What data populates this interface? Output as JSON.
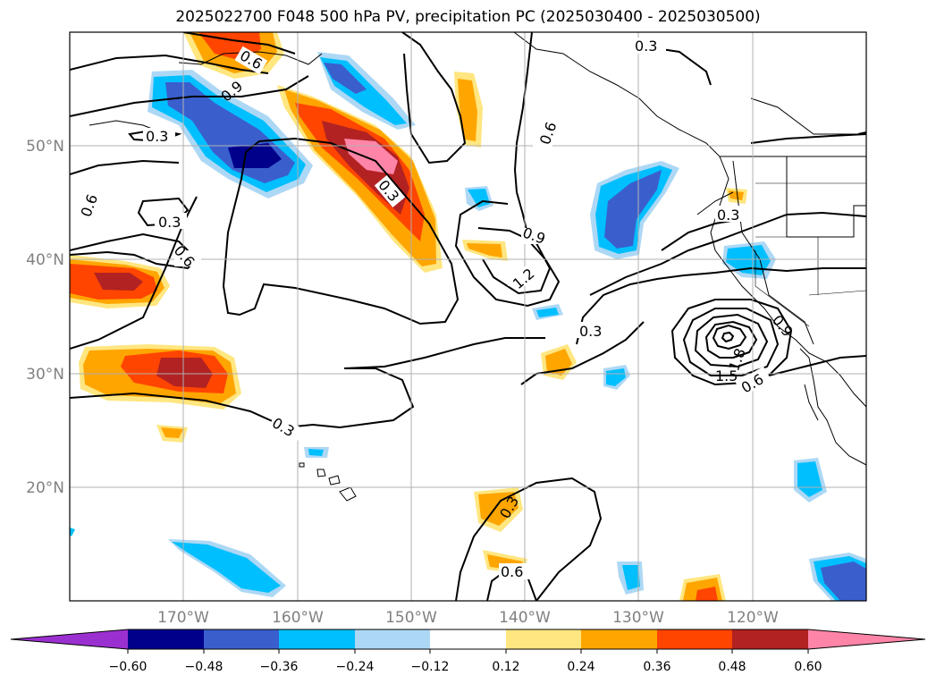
{
  "title": "2025022700 F048 500 hPa PV, precipitation PC (2025030400 - 2025030500)",
  "lat_labels": [
    "50°N",
    "40°N",
    "30°N",
    "20°N"
  ],
  "lon_labels": [
    "170°W",
    "160°W",
    "150°W",
    "140°W",
    "130°W",
    "120°W"
  ],
  "contour_labels": [
    "0.3",
    "0.6",
    "0.9",
    "1.2",
    "1.5",
    "1.8"
  ],
  "colorbar": {
    "ticks": [
      "−0.60",
      "−0.48",
      "−0.36",
      "−0.24",
      "−0.12",
      "0.12",
      "0.24",
      "0.36",
      "0.48",
      "0.60"
    ],
    "colors": [
      "#9b30d0",
      "#00008b",
      "#3a5fcd",
      "#00bfff",
      "#add8f5",
      "#ffffff",
      "#ffe680",
      "#ffa500",
      "#ff4500",
      "#b22222",
      "#ff85a8"
    ]
  },
  "palette": {
    "neg_060": "#00008b",
    "neg_048": "#3a5fcd",
    "neg_036": "#00bfff",
    "neg_024": "#add8f5",
    "pos_024": "#ffe680",
    "pos_036": "#ffa500",
    "pos_048": "#ff4500",
    "pos_060": "#b22222",
    "pos_max": "#ff85a8"
  }
}
